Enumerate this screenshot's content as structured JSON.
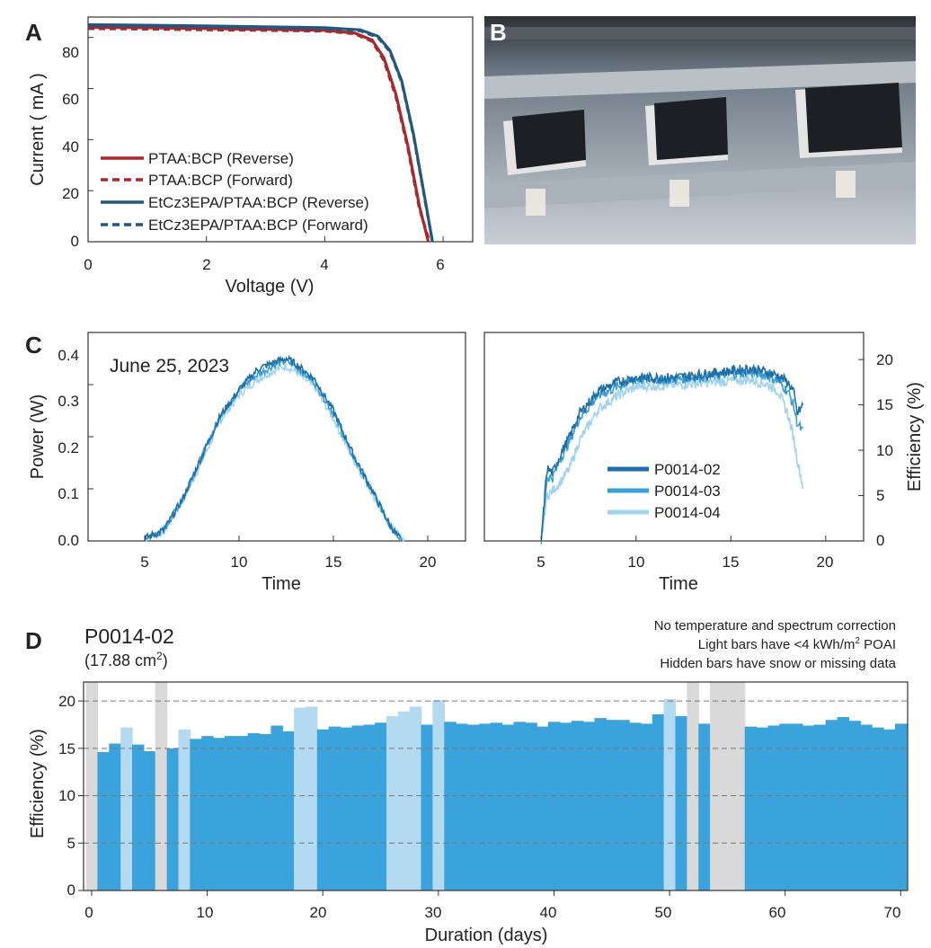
{
  "colors": {
    "ptaa": "#a8282c",
    "etcz": "#23577f",
    "p02": "#1f6fa6",
    "p03": "#3a9fd8",
    "p04": "#9fd3ef",
    "bar_normal": "#3aa3dc",
    "bar_light": "#b3daf1",
    "bar_hidden": "#d9d9d9"
  },
  "panel_a": {
    "label": "A",
    "xlabel": "Voltage (V)",
    "ylabel": "Current ( mA )",
    "xticks": [
      "0",
      "2",
      "4",
      "6"
    ],
    "yticks": [
      "0",
      "20",
      "40",
      "60",
      "80"
    ],
    "legend": [
      "PTAA:BCP (Reverse)",
      "PTAA:BCP (Forward)",
      "EtCz3EPA/PTAA:BCP (Reverse)",
      "EtCz3EPA/PTAA:BCP (Forward)"
    ]
  },
  "panel_b": {
    "label": "B",
    "description": "photo"
  },
  "panel_c": {
    "label": "C",
    "date": "June 25, 2023",
    "left_xlabel": "Time",
    "left_ylabel": "Power (W)",
    "right_xlabel": "Time",
    "right_ylabel": "Efficiency (%)",
    "left_xticks": [
      "5",
      "10",
      "15",
      "20"
    ],
    "left_yticks": [
      "0.0",
      "0.1",
      "0.2",
      "0.3",
      "0.4"
    ],
    "right_xticks": [
      "5",
      "10",
      "15",
      "20"
    ],
    "right_yticks": [
      "0",
      "5",
      "10",
      "15",
      "20"
    ],
    "legend": [
      "P0014-02",
      "P0014-03",
      "P0014-04"
    ]
  },
  "panel_d": {
    "label": "D",
    "device": "P0014-02",
    "area_prefix": "(17.88 cm",
    "area_sup": "2",
    "area_suffix": ")",
    "note1": "No temperature and spectrum correction",
    "note2_a": "Light bars have <4 kWh/m",
    "note2_sup": "2",
    "note2_b": " POAI",
    "note3": "Hidden bars have snow or missing data",
    "xlabel": "Duration (days)",
    "ylabel": "Efficiency (%)",
    "xticks": [
      "0",
      "10",
      "20",
      "30",
      "40",
      "50",
      "60",
      "70"
    ],
    "yticks": [
      "0",
      "5",
      "10",
      "15",
      "20"
    ]
  },
  "chart_data": [
    {
      "type": "line",
      "title": "A",
      "xlabel": "Voltage (V)",
      "ylabel": "Current ( mA )",
      "xlim": [
        0,
        6.5
      ],
      "ylim": [
        0,
        88
      ],
      "series": [
        {
          "name": "PTAA:BCP (Reverse)",
          "x": [
            0,
            1,
            2,
            3,
            4,
            4.5,
            4.8,
            5.0,
            5.2,
            5.4,
            5.6,
            5.75
          ],
          "y": [
            84,
            83.8,
            83.5,
            83.2,
            82.8,
            81.8,
            79,
            72,
            58,
            38,
            14,
            0
          ]
        },
        {
          "name": "PTAA:BCP (Forward)",
          "x": [
            0,
            1,
            2,
            3,
            4,
            4.5,
            4.8,
            5.0,
            5.2,
            5.4,
            5.6,
            5.77
          ],
          "y": [
            83.5,
            83.3,
            83.0,
            82.8,
            82.5,
            81.5,
            78.5,
            71,
            57,
            37,
            13,
            0
          ]
        },
        {
          "name": "EtCz3EPA/PTAA:BCP (Reverse)",
          "x": [
            0,
            1,
            2,
            3,
            4,
            4.6,
            4.9,
            5.1,
            5.3,
            5.5,
            5.7,
            5.82
          ],
          "y": [
            85,
            84.8,
            84.5,
            84.2,
            83.8,
            83,
            80.5,
            75,
            63,
            42,
            16,
            0
          ]
        },
        {
          "name": "EtCz3EPA/PTAA:BCP (Forward)",
          "x": [
            0,
            1,
            2,
            3,
            4,
            4.6,
            4.9,
            5.1,
            5.3,
            5.5,
            5.7,
            5.82
          ],
          "y": [
            84.6,
            84.4,
            84.1,
            83.8,
            83.4,
            82.6,
            80,
            74.5,
            62.5,
            41.5,
            15.5,
            0
          ]
        }
      ]
    },
    {
      "type": "line",
      "title": "June 25, 2023",
      "xlabel": "Time",
      "ylabel": "Power (W)",
      "xlim": [
        2,
        22
      ],
      "ylim": [
        0,
        0.4
      ],
      "series": [
        {
          "name": "P0014-02",
          "x": [
            5,
            6,
            7,
            8,
            9,
            10,
            11,
            12,
            12.5,
            13,
            14,
            15,
            16,
            17,
            18,
            18.6
          ],
          "y": [
            0.005,
            0.02,
            0.08,
            0.16,
            0.24,
            0.29,
            0.33,
            0.345,
            0.35,
            0.34,
            0.31,
            0.25,
            0.17,
            0.1,
            0.03,
            0.0
          ]
        },
        {
          "name": "P0014-03",
          "x": [
            5,
            6,
            7,
            8,
            9,
            10,
            11,
            12,
            12.5,
            13,
            14,
            15,
            16,
            17,
            18,
            18.7
          ],
          "y": [
            0.005,
            0.02,
            0.08,
            0.16,
            0.24,
            0.29,
            0.32,
            0.34,
            0.345,
            0.335,
            0.305,
            0.245,
            0.165,
            0.1,
            0.03,
            0.0
          ]
        },
        {
          "name": "P0014-04",
          "x": [
            5,
            6,
            7,
            8,
            9,
            10,
            11,
            12,
            12.5,
            13,
            14,
            15,
            16,
            17,
            18,
            18.8
          ],
          "y": [
            0.004,
            0.018,
            0.075,
            0.15,
            0.23,
            0.28,
            0.31,
            0.33,
            0.335,
            0.325,
            0.295,
            0.235,
            0.16,
            0.095,
            0.028,
            0.0
          ]
        }
      ]
    },
    {
      "type": "line",
      "title": "",
      "xlabel": "Time",
      "ylabel": "Efficiency (%)",
      "xlim": [
        2,
        22
      ],
      "ylim": [
        0,
        21.5
      ],
      "series": [
        {
          "name": "P0014-02",
          "x": [
            5,
            5.3,
            5.6,
            6,
            6.5,
            7,
            8,
            9,
            10,
            12,
            14,
            16,
            17,
            17.5,
            18,
            18.3,
            18.5,
            18.8
          ],
          "y": [
            0,
            8,
            7.5,
            9.5,
            11.5,
            14,
            16.5,
            17.5,
            18,
            18,
            18.5,
            19,
            18.6,
            18.2,
            17.5,
            16.5,
            14,
            15
          ]
        },
        {
          "name": "P0014-03",
          "x": [
            5,
            5.3,
            5.6,
            6,
            6.5,
            7,
            8,
            9,
            10,
            12,
            14,
            16,
            17,
            17.5,
            18,
            18.3,
            18.5,
            18.8
          ],
          "y": [
            0,
            7,
            7,
            9,
            11,
            13.5,
            16,
            17,
            17.8,
            17.8,
            18.2,
            18.6,
            18.2,
            17.6,
            16.5,
            15,
            13,
            12
          ]
        },
        {
          "name": "P0014-04",
          "x": [
            5,
            5.3,
            5.6,
            6,
            6.5,
            7,
            8,
            9,
            10,
            12,
            14,
            16,
            17,
            17.5,
            18,
            18.3,
            18.5,
            18.8
          ],
          "y": [
            0,
            5,
            5.5,
            6.5,
            8,
            11,
            14.5,
            16,
            17,
            17.2,
            17.5,
            17.8,
            17.2,
            16.5,
            14,
            11.5,
            9,
            6
          ]
        }
      ]
    },
    {
      "type": "bar",
      "title": "P0014-02",
      "xlabel": "Duration (days)",
      "ylabel": "Efficiency (%)",
      "xlim": [
        -0.7,
        70.6
      ],
      "ylim": [
        0,
        22
      ],
      "reference_line": 20,
      "bar_kinds": {
        "n": "normal",
        "l": "light (<4 kWh/m2 POAI)",
        "h": "hidden (snow or missing data)"
      },
      "days": [
        0,
        1,
        2,
        3,
        4,
        5,
        6,
        7,
        8,
        9,
        10,
        11,
        12,
        13,
        14,
        15,
        16,
        17,
        18,
        19,
        20,
        21,
        22,
        23,
        24,
        25,
        26,
        27,
        28,
        29,
        30,
        31,
        32,
        33,
        34,
        35,
        36,
        37,
        38,
        39,
        40,
        41,
        42,
        43,
        44,
        45,
        46,
        47,
        48,
        49,
        50,
        51,
        52,
        53,
        54,
        55,
        56,
        57,
        58,
        59,
        60,
        61,
        62,
        63,
        64,
        65,
        66,
        67,
        68,
        69,
        70
      ],
      "values": [
        22,
        14.6,
        15.5,
        17.2,
        15.4,
        14.7,
        22,
        15.0,
        17.0,
        16.0,
        16.3,
        16.1,
        16.3,
        16.3,
        16.6,
        16.5,
        17.4,
        16.8,
        19.3,
        19.4,
        17.0,
        17.3,
        17.2,
        17.4,
        17.5,
        17.7,
        18.4,
        18.9,
        19.4,
        17.5,
        20.1,
        17.8,
        17.6,
        17.5,
        17.6,
        17.7,
        17.5,
        17.8,
        17.7,
        17.3,
        17.8,
        17.7,
        17.9,
        17.8,
        18.2,
        18.0,
        18.0,
        17.7,
        17.6,
        18.6,
        20.2,
        18.4,
        22,
        17.6,
        22,
        22,
        22,
        17.3,
        17.2,
        17.4,
        17.6,
        17.6,
        17.4,
        17.5,
        18.0,
        18.3,
        17.9,
        17.5,
        17.2,
        17.0,
        17.6
      ],
      "kinds": [
        "h",
        "n",
        "n",
        "l",
        "n",
        "n",
        "h",
        "n",
        "l",
        "n",
        "n",
        "n",
        "n",
        "n",
        "n",
        "n",
        "n",
        "n",
        "l",
        "l",
        "n",
        "n",
        "n",
        "n",
        "n",
        "n",
        "l",
        "l",
        "l",
        "n",
        "l",
        "n",
        "n",
        "n",
        "n",
        "n",
        "n",
        "n",
        "n",
        "n",
        "n",
        "n",
        "n",
        "n",
        "n",
        "n",
        "n",
        "n",
        "n",
        "n",
        "l",
        "n",
        "h",
        "n",
        "h",
        "h",
        "h",
        "n",
        "n",
        "n",
        "n",
        "n",
        "n",
        "n",
        "n",
        "n",
        "n",
        "n",
        "n",
        "n",
        "n"
      ]
    }
  ]
}
